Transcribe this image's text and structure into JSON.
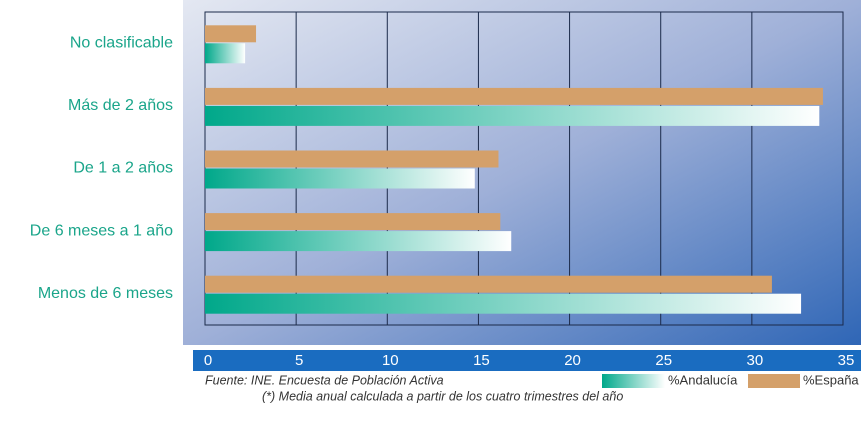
{
  "chart_data": {
    "type": "hbar",
    "categories": [
      "No clasificable",
      "Más de 2 años",
      "De 1 a 2 años",
      "De 6 meses a 1 año",
      "Menos de 6 meses"
    ],
    "series": [
      {
        "name": "%Andalucía",
        "color": "#00a88a",
        "values": [
          2.2,
          33.7,
          14.8,
          16.8,
          32.7
        ]
      },
      {
        "name": "%España",
        "color": "#d4a06a",
        "values": [
          2.8,
          33.9,
          16.1,
          16.2,
          31.1
        ]
      }
    ],
    "xlim": [
      0,
      35
    ],
    "xticks": [
      0,
      5,
      10,
      15,
      20,
      25,
      30,
      35
    ],
    "grid": true,
    "source": "Fuente:  INE. Encuesta de Población Activa",
    "note": "(*)  Media anual calculada a partir de los cuatro trimestres del año"
  }
}
